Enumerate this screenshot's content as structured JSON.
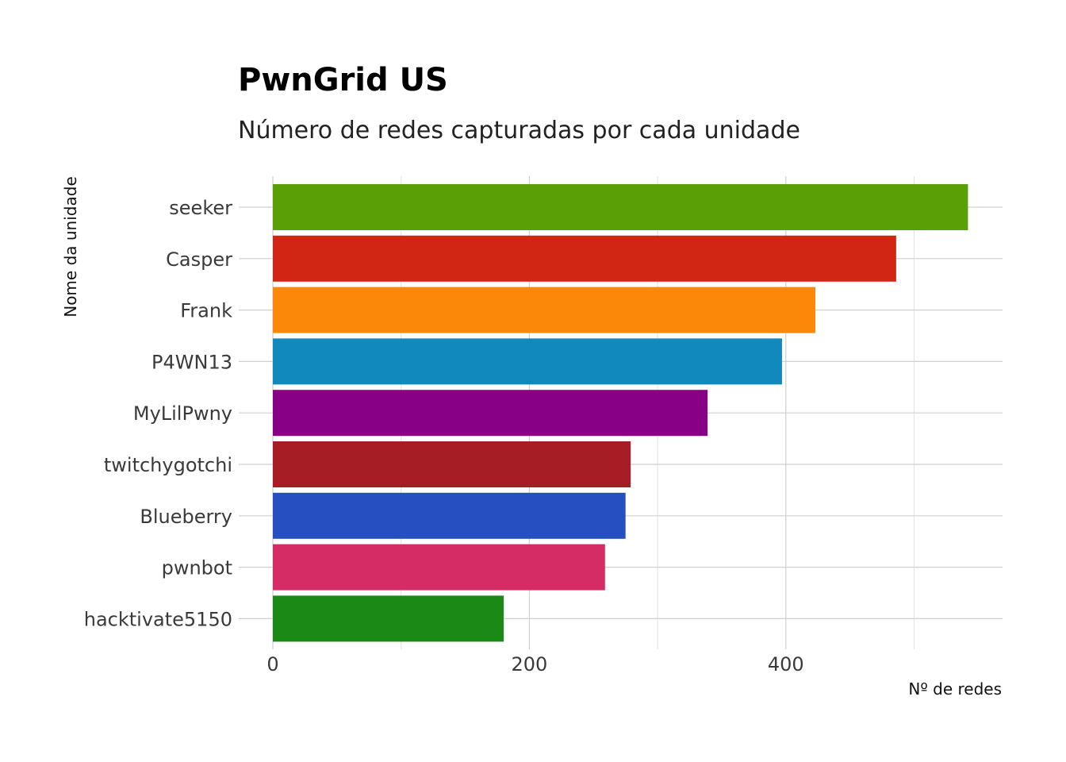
{
  "chart_data": {
    "type": "bar",
    "orientation": "horizontal",
    "title": "PwnGrid US",
    "subtitle": "Número de redes capturadas por cada unidade",
    "xlabel": "Nº de redes",
    "ylabel": "Nome da unidade",
    "categories": [
      "seeker",
      "Casper",
      "Frank",
      "P4WN13",
      "MyLilPwny",
      "twitchygotchi",
      "Blueberry",
      "pwnbot",
      "hacktivate5150"
    ],
    "values": [
      542,
      486,
      423,
      397,
      339,
      279,
      275,
      259,
      180
    ],
    "colors": [
      "#5a9f05",
      "#d22614",
      "#fc880a",
      "#1289bc",
      "#870085",
      "#a71d25",
      "#2650c1",
      "#d52c66",
      "#1b8916"
    ],
    "xlim": [
      0,
      570
    ],
    "xticks": [
      0,
      200,
      400
    ],
    "grid": true,
    "legend": "none"
  }
}
